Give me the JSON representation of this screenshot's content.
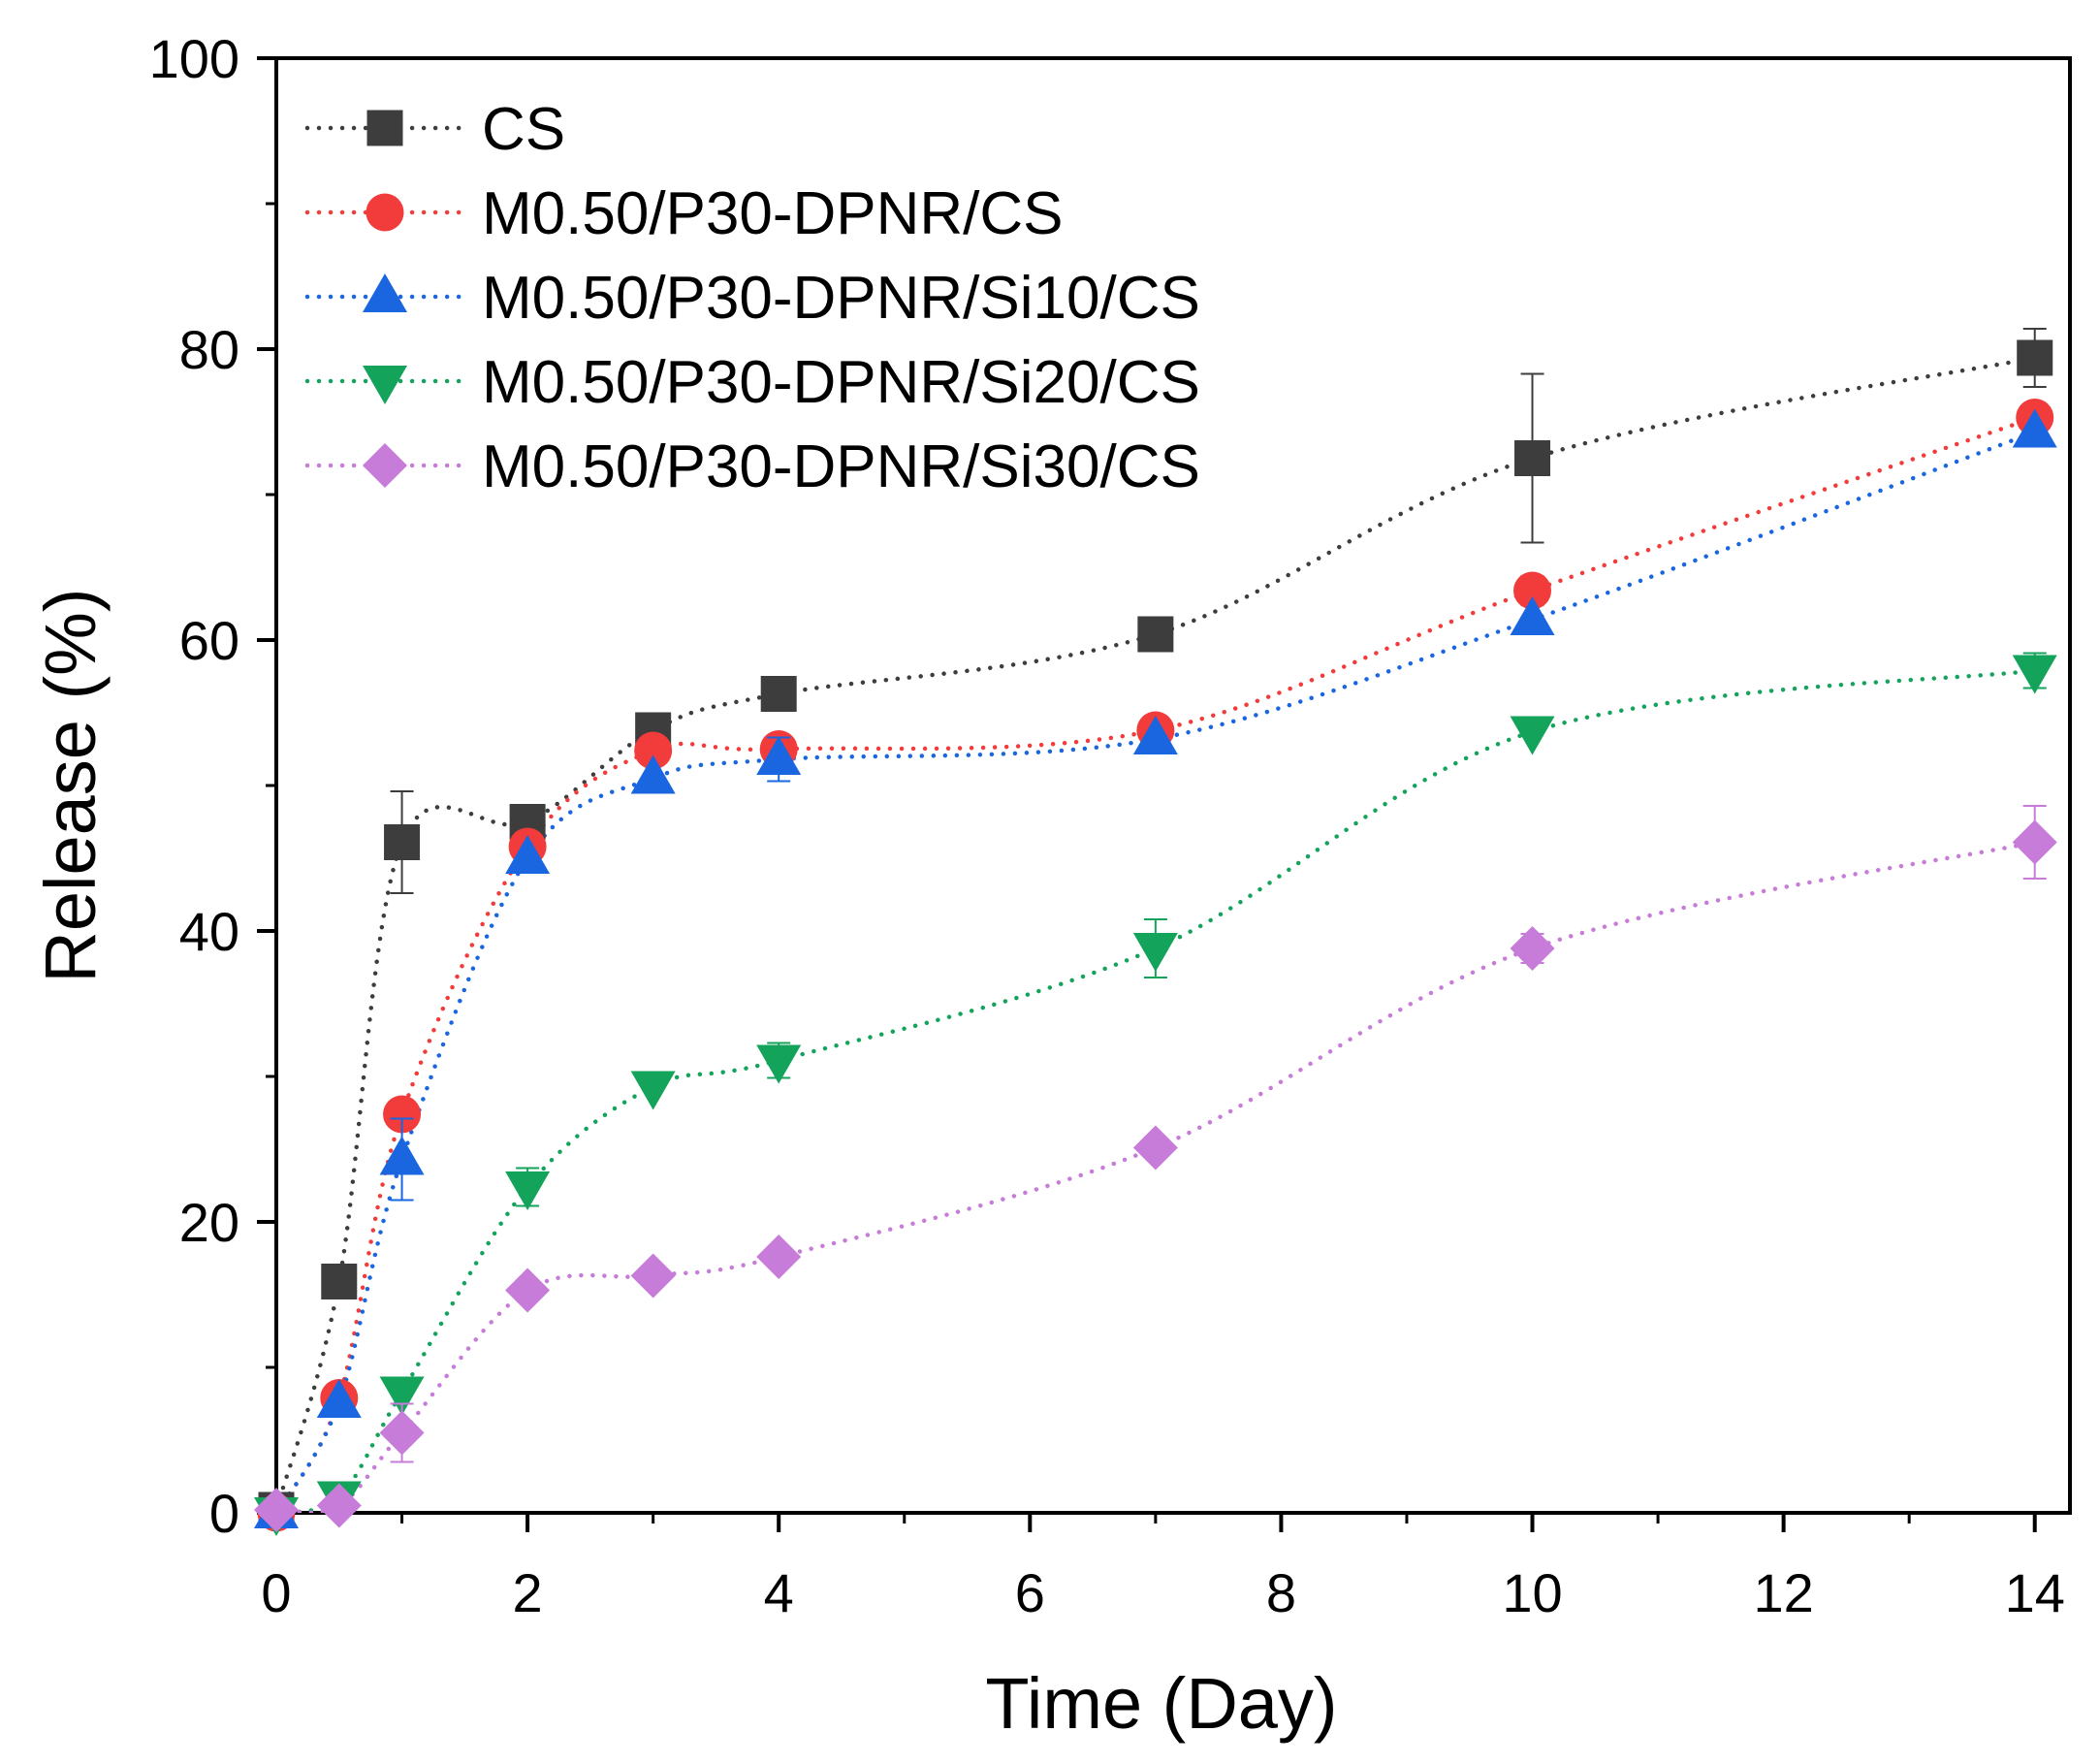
{
  "chart_data": {
    "type": "line",
    "xlabel": "Time (Day)",
    "ylabel": "Release (%)",
    "xlim": [
      0,
      14.28
    ],
    "ylim": [
      0,
      100
    ],
    "x_ticks": [
      0,
      2,
      4,
      6,
      8,
      10,
      12,
      14
    ],
    "x_minor_ticks": [
      1,
      3,
      5,
      7,
      9,
      11,
      13
    ],
    "y_ticks": [
      0,
      20,
      40,
      60,
      80,
      100
    ],
    "y_minor_ticks": [
      10,
      30,
      50,
      70,
      90
    ],
    "grid": false,
    "legend": "top-left",
    "x": [
      0,
      0.5,
      1,
      2,
      3,
      4,
      7,
      10,
      14
    ],
    "series": [
      {
        "name": "CS",
        "color": "#3d3d3d",
        "marker": "square",
        "values": [
          0.2,
          15.9,
          46.1,
          47.5,
          53.8,
          56.3,
          60.4,
          72.5,
          79.4
        ],
        "errors": [
          0,
          0,
          3.5,
          1.1,
          0.4,
          0,
          0,
          5.8,
          2.0
        ]
      },
      {
        "name": "M0.50/P30-DPNR/CS",
        "color": "#f23b3b",
        "marker": "circle",
        "values": [
          0,
          7.9,
          27.4,
          45.8,
          52.4,
          52.5,
          53.8,
          63.4,
          75.3
        ],
        "errors": [
          0,
          0,
          0,
          0,
          0,
          0,
          0,
          1.0,
          0
        ]
      },
      {
        "name": "M0.50/P30-DPNR/Si10/CS",
        "color": "#1a66e0",
        "marker": "triangle-up",
        "values": [
          0,
          7.6,
          24.3,
          45.0,
          50.5,
          51.8,
          53.2,
          61.4,
          74.3
        ],
        "errors": [
          0,
          0,
          2.8,
          0,
          0,
          1.5,
          0,
          0,
          0
        ]
      },
      {
        "name": "M0.50/P30-DPNR/Si20/CS",
        "color": "#13a35b",
        "marker": "triangle-down",
        "values": [
          0,
          1.1,
          8.3,
          22.4,
          29.3,
          31.1,
          38.8,
          53.7,
          57.9
        ],
        "errors": [
          0,
          0,
          0,
          1.3,
          0,
          1.2,
          2.0,
          0,
          1.2
        ]
      },
      {
        "name": "M0.50/P30-DPNR/Si30/CS",
        "color": "#c67cd8",
        "marker": "diamond",
        "values": [
          0.2,
          0.5,
          5.5,
          15.3,
          16.3,
          17.6,
          25.1,
          38.8,
          46.1
        ],
        "errors": [
          0,
          0,
          2.0,
          0,
          0,
          0,
          0,
          1.0,
          2.5
        ]
      }
    ]
  }
}
